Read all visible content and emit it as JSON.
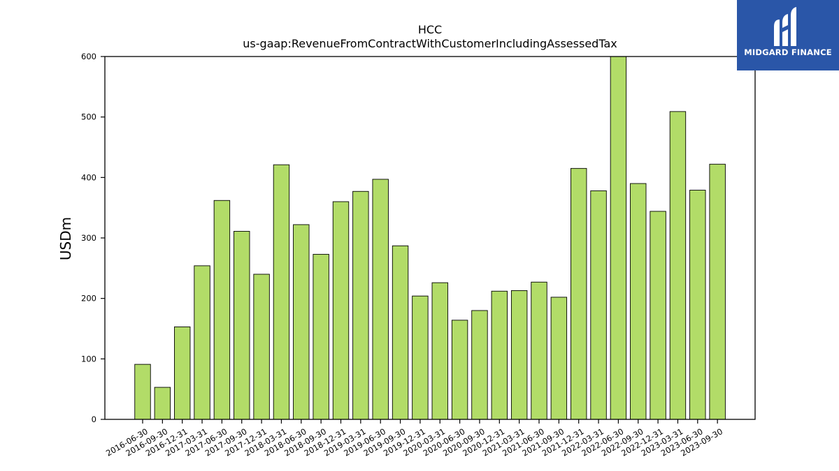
{
  "chart_data": {
    "type": "bar",
    "title": "HCC",
    "subtitle": "us-gaap:RevenueFromContractWithCustomerIncludingAssessedTax",
    "ylabel": "USDm",
    "xlabel": "",
    "ylim": [
      0,
      600
    ],
    "yticks": [
      0,
      100,
      200,
      300,
      400,
      500,
      600
    ],
    "grid": false,
    "bar_color": "#b2dc68",
    "bar_edge_color": "#000000",
    "categories": [
      "2016-06-30",
      "2016-09-30",
      "2016-12-31",
      "2017-03-31",
      "2017-06-30",
      "2017-09-30",
      "2017-12-31",
      "2018-03-31",
      "2018-06-30",
      "2018-09-30",
      "2018-12-31",
      "2019-03-31",
      "2019-06-30",
      "2019-09-30",
      "2019-12-31",
      "2020-03-31",
      "2020-06-30",
      "2020-09-30",
      "2020-12-31",
      "2021-03-31",
      "2021-06-30",
      "2021-09-30",
      "2021-12-31",
      "2022-03-31",
      "2022-06-30",
      "2022-09-30",
      "2022-12-31",
      "2023-03-31",
      "2023-06-30",
      "2023-09-30"
    ],
    "values": [
      91,
      53,
      153,
      254,
      362,
      311,
      240,
      421,
      322,
      273,
      360,
      377,
      397,
      287,
      204,
      226,
      164,
      180,
      212,
      213,
      227,
      202,
      415,
      378,
      602,
      390,
      344,
      509,
      379,
      422
    ]
  },
  "logo": {
    "text": "MIDGARD FINANCE",
    "background": "#2a56a8"
  }
}
